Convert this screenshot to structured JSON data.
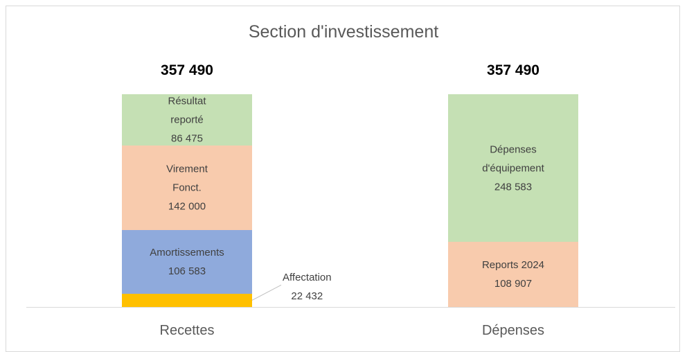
{
  "chart_data": {
    "type": "stacked_bar",
    "title": "Section d'investissement",
    "categories": [
      "Recettes",
      "Dépenses"
    ],
    "totals": [
      357490,
      357490
    ],
    "total_labels": [
      "357 490",
      "357 490"
    ],
    "series": [
      {
        "name": "Affectation",
        "color": "#ffc000",
        "values": [
          22432,
          null
        ],
        "value_labels": [
          "22 432",
          null
        ]
      },
      {
        "name": "Amortissements",
        "color": "#8faadc",
        "values": [
          106583,
          null
        ],
        "value_labels": [
          "106 583",
          null
        ]
      },
      {
        "name": "Virement Fonct.",
        "color": "#f8cbad",
        "values": [
          142000,
          null
        ],
        "value_labels": [
          "142 000",
          null
        ]
      },
      {
        "name": "Résultat reporté",
        "color": "#c5e0b4",
        "values": [
          86475,
          null
        ],
        "value_labels": [
          "86 475",
          null
        ]
      },
      {
        "name": "Reports 2024",
        "color": "#f8cbad",
        "values": [
          null,
          108907
        ],
        "value_labels": [
          null,
          "108 907"
        ]
      },
      {
        "name": "Dépenses d'équipement",
        "color": "#c5e0b4",
        "values": [
          null,
          248583
        ],
        "value_labels": [
          null,
          "248 583"
        ]
      }
    ]
  }
}
